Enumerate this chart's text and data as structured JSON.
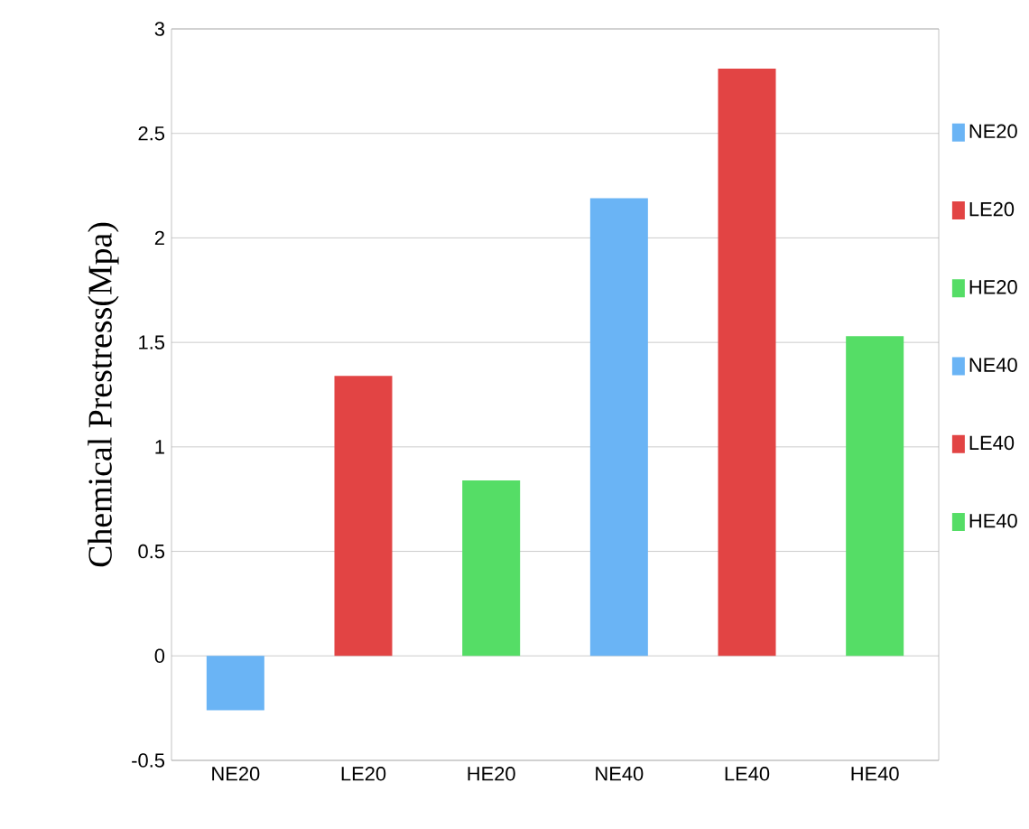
{
  "chart_data": {
    "type": "bar",
    "ylabel": "Chemical Prestress(Mpa)",
    "categories": [
      "NE20",
      "LE20",
      "HE20",
      "NE40",
      "LE40",
      "HE40"
    ],
    "series": [
      {
        "name": "NE20",
        "color": "#6ab4f5",
        "values": [
          -0.26,
          null,
          null,
          null,
          null,
          null
        ]
      },
      {
        "name": "LE20",
        "color": "#e24444",
        "values": [
          null,
          1.34,
          null,
          null,
          null,
          null
        ]
      },
      {
        "name": "HE20",
        "color": "#55dd66",
        "values": [
          null,
          null,
          0.84,
          null,
          null,
          null
        ]
      },
      {
        "name": "NE40",
        "color": "#6ab4f5",
        "values": [
          null,
          null,
          null,
          2.19,
          null,
          null
        ]
      },
      {
        "name": "LE40",
        "color": "#e24444",
        "values": [
          null,
          null,
          null,
          null,
          2.81,
          null
        ]
      },
      {
        "name": "HE40",
        "color": "#55dd66",
        "values": [
          null,
          null,
          null,
          null,
          null,
          1.53
        ]
      }
    ],
    "ylim": [
      -0.5,
      3
    ],
    "yticks": [
      -0.5,
      0,
      0.5,
      1,
      1.5,
      2,
      2.5,
      3
    ],
    "grid": "y",
    "legend": "right"
  }
}
